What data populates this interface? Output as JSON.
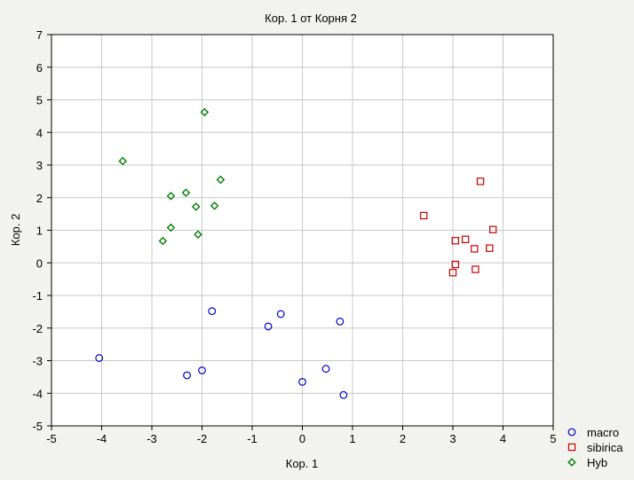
{
  "chart_data": {
    "type": "scatter",
    "title": "Кор. 1 от Корня 2",
    "xlabel": "Кор. 1",
    "ylabel": "Кор. 2",
    "xlim": [
      -5,
      5
    ],
    "ylim": [
      -5,
      7
    ],
    "xticks": [
      "-5",
      "-4",
      "-3",
      "-2",
      "-1",
      "0",
      "1",
      "2",
      "3",
      "4",
      "5"
    ],
    "yticks": [
      "-5",
      "-4",
      "-3",
      "-2",
      "-1",
      "0",
      "1",
      "2",
      "3",
      "4",
      "5",
      "6",
      "7"
    ],
    "grid": true,
    "legend_position": "bottom-right",
    "series": [
      {
        "name": "macro",
        "marker": "circle",
        "color": "#0000cc",
        "points": [
          [
            -4.05,
            -2.92
          ],
          [
            -2.3,
            -3.45
          ],
          [
            -2.0,
            -3.3
          ],
          [
            -1.8,
            -1.48
          ],
          [
            -0.68,
            -1.95
          ],
          [
            -0.43,
            -1.57
          ],
          [
            0.0,
            -3.65
          ],
          [
            0.47,
            -3.25
          ],
          [
            0.75,
            -1.8
          ],
          [
            0.82,
            -4.05
          ]
        ]
      },
      {
        "name": "sibirica",
        "marker": "square",
        "color": "#cc0000",
        "points": [
          [
            2.42,
            1.45
          ],
          [
            3.0,
            -0.3
          ],
          [
            3.05,
            0.68
          ],
          [
            3.05,
            -0.05
          ],
          [
            3.25,
            0.72
          ],
          [
            3.43,
            0.43
          ],
          [
            3.45,
            -0.2
          ],
          [
            3.55,
            2.5
          ],
          [
            3.73,
            0.45
          ],
          [
            3.8,
            1.02
          ]
        ]
      },
      {
        "name": "Hyb",
        "marker": "diamond",
        "color": "#008000",
        "points": [
          [
            -3.58,
            3.12
          ],
          [
            -2.78,
            0.67
          ],
          [
            -2.62,
            2.05
          ],
          [
            -2.62,
            1.08
          ],
          [
            -2.32,
            2.15
          ],
          [
            -2.12,
            1.72
          ],
          [
            -2.08,
            0.87
          ],
          [
            -1.95,
            4.62
          ],
          [
            -1.75,
            1.75
          ],
          [
            -1.63,
            2.55
          ]
        ]
      }
    ]
  }
}
